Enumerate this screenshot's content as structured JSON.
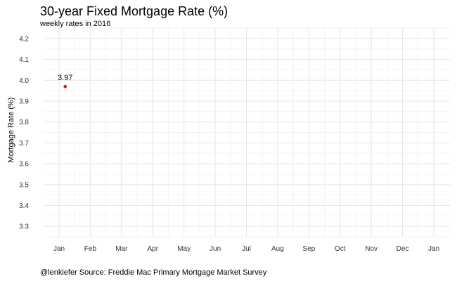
{
  "chart_data": {
    "type": "scatter",
    "title": "30-year Fixed Mortgage Rate (%)",
    "subtitle": "weekly rates in 2016",
    "caption": "@lenkiefer Source: Freddie Mac Primary Mortgage Market Survey",
    "xlabel": "",
    "ylabel": "Mortgage Rate (%)",
    "x_ticks": [
      "Jan",
      "Feb",
      "Mar",
      "Apr",
      "May",
      "Jun",
      "Jul",
      "Aug",
      "Sep",
      "Oct",
      "Nov",
      "Dec",
      "Jan"
    ],
    "y_ticks": [
      "3.3",
      "3.4",
      "3.5",
      "3.6",
      "3.7",
      "3.8",
      "3.9",
      "4.0",
      "4.1",
      "4.2"
    ],
    "ylim": [
      3.25,
      4.25
    ],
    "xlim": [
      "2016-01-01",
      "2017-01-01"
    ],
    "grid": true,
    "points": [
      {
        "x": "2016-01-07",
        "y": 3.97,
        "label": "3.97"
      }
    ],
    "point_color": "#e31a1c"
  }
}
